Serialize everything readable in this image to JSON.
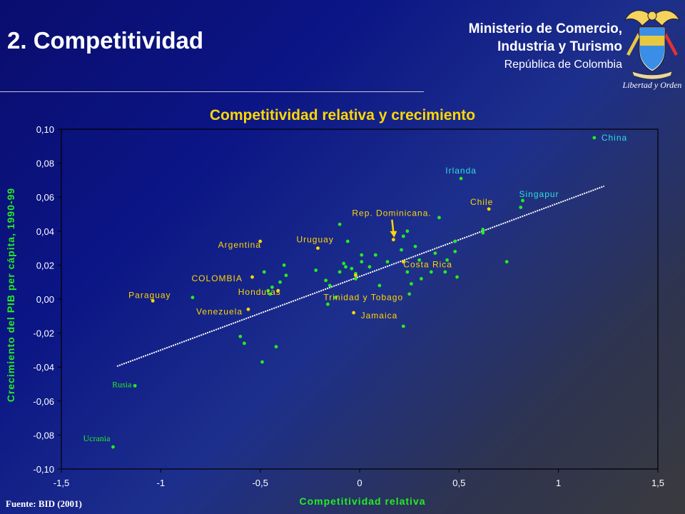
{
  "header": {
    "title": "2. Competitividad",
    "ministry_line1": "Ministerio de Comercio,",
    "ministry_line2": "Industria y Turismo",
    "ministry_line3": "República de Colombia",
    "seal_motto": "Libertad y Orden"
  },
  "footer": {
    "source": "Fuente: BID (2001)"
  },
  "colors": {
    "highlight": "#ffd700",
    "green": "#22ee22",
    "cyan": "#2de0e0",
    "trend": "#ffffff"
  },
  "chart_data": {
    "type": "scatter",
    "title": "Competitividad relativa y crecimiento",
    "xlabel": "Competitividad relativa",
    "ylabel": "Crecimiento del PIB per cápita, 1990-99",
    "xlim": [
      -1.5,
      1.5
    ],
    "ylim": [
      -0.1,
      0.1
    ],
    "x_ticks": [
      -1.5,
      -1,
      -0.5,
      0,
      0.5,
      1,
      1.5
    ],
    "x_tick_labels": [
      "-1,5",
      "-1",
      "-0,5",
      "0",
      "0,5",
      "1",
      "1,5"
    ],
    "y_ticks": [
      0.1,
      0.08,
      0.06,
      0.04,
      0.02,
      0.0,
      -0.02,
      -0.04,
      -0.06,
      -0.08,
      -0.1
    ],
    "y_tick_labels": [
      "0,10",
      "0,08",
      "0,06",
      "0,04",
      "0,02",
      "0,00",
      "-0,02",
      "-0,04",
      "-0,06",
      "-0,08",
      "-0,10"
    ],
    "grid": false,
    "trendline": {
      "x": [
        -1.22,
        1.23
      ],
      "y": [
        -0.0395,
        0.0665
      ]
    },
    "labeled_points": [
      {
        "label": "China",
        "x": 1.18,
        "y": 0.095,
        "marker": "green",
        "text_color": "cyan",
        "dx": 10,
        "dy": 0,
        "anchor": "start"
      },
      {
        "label": "Irlanda",
        "x": 0.51,
        "y": 0.071,
        "marker": "green",
        "text_color": "cyan",
        "dx": 0,
        "dy": -11,
        "anchor": "middle"
      },
      {
        "label": "Chile",
        "x": 0.65,
        "y": 0.053,
        "marker": "yellow",
        "text_color": "yellow",
        "dx": -10,
        "dy": -10,
        "anchor": "middle"
      },
      {
        "label": "Singapur",
        "x": 0.82,
        "y": 0.058,
        "marker": "green",
        "text_color": "cyan",
        "dx": -5,
        "dy": -9,
        "anchor": "start"
      },
      {
        "label": "Rep. Dominicana.",
        "x": 0.17,
        "y": 0.035,
        "marker": "yellow",
        "text_color": "yellow",
        "dx": -58,
        "dy": -37,
        "anchor": "start"
      },
      {
        "label": "Uruguay",
        "x": -0.21,
        "y": 0.03,
        "marker": "yellow",
        "text_color": "yellow",
        "dx": -30,
        "dy": -12,
        "anchor": "start"
      },
      {
        "label": "Argentina",
        "x": -0.5,
        "y": 0.034,
        "marker": "yellow",
        "text_color": "yellow",
        "dx": -59,
        "dy": 5,
        "anchor": "start"
      },
      {
        "label": "Costa Rica",
        "x": 0.22,
        "y": 0.022,
        "marker": "yellow",
        "text_color": "yellow",
        "dx": 0,
        "dy": 4,
        "anchor": "start"
      },
      {
        "label": "COLOMBIA",
        "x": -0.54,
        "y": 0.013,
        "marker": "yellow",
        "text_color": "yellow",
        "dx": -85,
        "dy": 2,
        "anchor": "start"
      },
      {
        "label": "Honduras",
        "x": -0.41,
        "y": 0.005,
        "marker": "yellow",
        "text_color": "yellow",
        "dx": -56,
        "dy": 2,
        "anchor": "start"
      },
      {
        "label": "Paraguay",
        "x": -1.04,
        "y": -0.001,
        "marker": "yellow",
        "text_color": "yellow",
        "dx": -34,
        "dy": -8,
        "anchor": "start"
      },
      {
        "label": "Trinidad y Tobago",
        "x": -0.02,
        "y": 0.014,
        "marker": "yellow",
        "text_color": "yellow",
        "dx": -45,
        "dy": 31,
        "anchor": "start"
      },
      {
        "label": "Venezuela",
        "x": -0.56,
        "y": -0.006,
        "marker": "yellow",
        "text_color": "yellow",
        "dx": -73,
        "dy": 3,
        "anchor": "start"
      },
      {
        "label": "Jamaica",
        "x": -0.03,
        "y": -0.008,
        "marker": "yellow",
        "text_color": "yellow",
        "dx": 10,
        "dy": 4,
        "anchor": "start"
      },
      {
        "label": "Rusia",
        "x": -1.13,
        "y": -0.051,
        "marker": "green",
        "text_color": "green",
        "dx": -32,
        "dy": -2,
        "anchor": "start",
        "font": "serif"
      },
      {
        "label": "Ucrania",
        "x": -1.24,
        "y": -0.087,
        "marker": "green",
        "text_color": "green",
        "dx": -42,
        "dy": -12,
        "anchor": "start",
        "font": "serif"
      }
    ],
    "points_green": [
      [
        -0.84,
        0.001
      ],
      [
        -0.45,
        0.003
      ],
      [
        -0.46,
        0.005
      ],
      [
        -0.44,
        0.007
      ],
      [
        -0.4,
        0.01
      ],
      [
        -0.38,
        0.02
      ],
      [
        -0.37,
        0.014
      ],
      [
        -0.48,
        0.016
      ],
      [
        -0.22,
        0.017
      ],
      [
        -0.17,
        0.011
      ],
      [
        -0.15,
        0.008
      ],
      [
        -0.12,
        0.001
      ],
      [
        -0.16,
        -0.003
      ],
      [
        -0.1,
        0.016
      ],
      [
        -0.08,
        0.021
      ],
      [
        -0.07,
        0.019
      ],
      [
        -0.04,
        0.018
      ],
      [
        -0.02,
        0.015
      ],
      [
        -0.02,
        0.012
      ],
      [
        0.01,
        0.022
      ],
      [
        0.01,
        0.026
      ],
      [
        0.05,
        0.019
      ],
      [
        0.08,
        0.026
      ],
      [
        0.1,
        0.008
      ],
      [
        0.14,
        0.022
      ],
      [
        0.22,
        0.037
      ],
      [
        0.24,
        0.04
      ],
      [
        0.21,
        0.029
      ],
      [
        0.24,
        0.016
      ],
      [
        0.26,
        0.009
      ],
      [
        0.28,
        0.031
      ],
      [
        0.3,
        0.023
      ],
      [
        0.31,
        0.012
      ],
      [
        0.36,
        0.016
      ],
      [
        0.38,
        0.027
      ],
      [
        0.44,
        0.023
      ],
      [
        0.43,
        0.016
      ],
      [
        0.48,
        0.028
      ],
      [
        0.48,
        0.034
      ],
      [
        0.49,
        0.013
      ],
      [
        0.62,
        0.039
      ],
      [
        0.62,
        0.041
      ],
      [
        0.74,
        0.022
      ],
      [
        0.81,
        0.054
      ],
      [
        -0.6,
        -0.022
      ],
      [
        -0.58,
        -0.026
      ],
      [
        -0.42,
        -0.028
      ],
      [
        -0.49,
        -0.037
      ],
      [
        0.22,
        -0.016
      ],
      [
        0.4,
        0.048
      ],
      [
        -0.06,
        0.034
      ],
      [
        0.25,
        0.003
      ],
      [
        -0.1,
        0.044
      ]
    ]
  }
}
